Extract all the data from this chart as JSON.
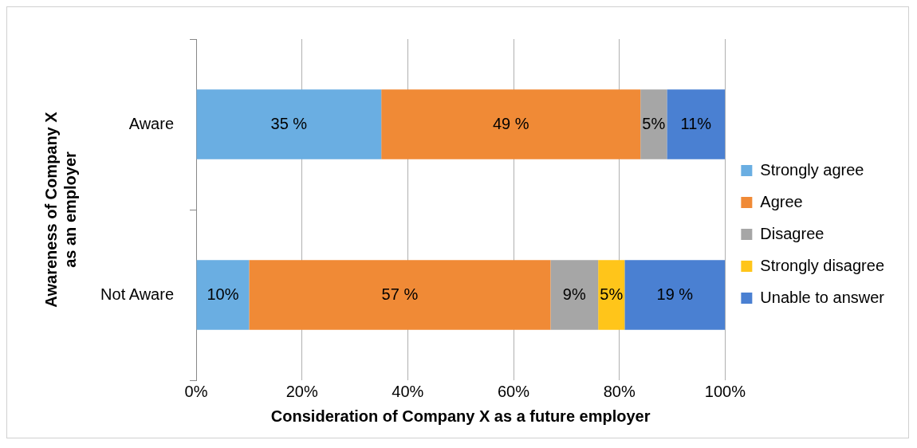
{
  "chart_data": {
    "type": "bar",
    "orientation": "horizontal",
    "stacked": true,
    "xlabel": "Consideration of Company X as a future employer",
    "ylabel": "Awareness of Company X\nas an employer",
    "categories": [
      "Aware",
      "Not Aware"
    ],
    "series": [
      {
        "name": "Strongly agree",
        "color": "#6aaee2",
        "values": [
          35,
          10
        ],
        "value_labels": [
          "35 %",
          "10%"
        ]
      },
      {
        "name": "Agree",
        "color": "#f08a36",
        "values": [
          49,
          57
        ],
        "value_labels": [
          "49 %",
          "57 %"
        ]
      },
      {
        "name": "Disagree",
        "color": "#a6a6a6",
        "values": [
          5,
          9
        ],
        "value_labels": [
          "5%",
          "9%"
        ]
      },
      {
        "name": "Strongly disagree",
        "color": "#ffc51a",
        "values": [
          null,
          5
        ],
        "value_labels": [
          null,
          "5%"
        ]
      },
      {
        "name": "Unable to answer",
        "color": "#4a80d2",
        "values": [
          11,
          19
        ],
        "value_labels": [
          "11%",
          "19 %"
        ]
      }
    ],
    "xlim": [
      0,
      100
    ],
    "xticks": [
      {
        "value": 0,
        "label": "0%"
      },
      {
        "value": 20,
        "label": "20%"
      },
      {
        "value": 40,
        "label": "40%"
      },
      {
        "value": 60,
        "label": "60%"
      },
      {
        "value": 80,
        "label": "80%"
      },
      {
        "value": 100,
        "label": "100%"
      }
    ],
    "grid": "x",
    "legend": "right"
  }
}
